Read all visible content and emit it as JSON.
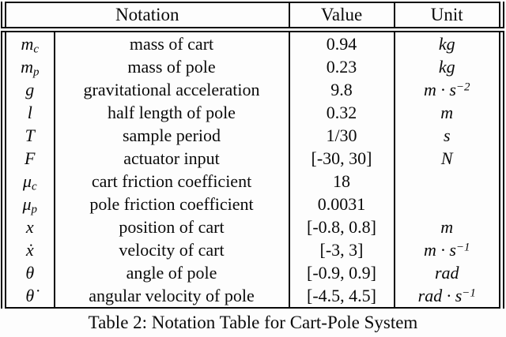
{
  "table": {
    "headers": {
      "notation": "Notation",
      "value": "Value",
      "unit": "Unit"
    },
    "rows": [
      {
        "symbol": {
          "base": "m",
          "sub": "c"
        },
        "description": "mass of cart",
        "value": "0.94",
        "unit": {
          "base": "kg",
          "sup": ""
        }
      },
      {
        "symbol": {
          "base": "m",
          "sub": "p"
        },
        "description": "mass of pole",
        "value": "0.23",
        "unit": {
          "base": "kg",
          "sup": ""
        }
      },
      {
        "symbol": {
          "base": "g",
          "sub": ""
        },
        "description": "gravitational acceleration",
        "value": "9.8",
        "unit": {
          "base": "m · s",
          "sup": "−2"
        }
      },
      {
        "symbol": {
          "base": "l",
          "sub": ""
        },
        "description": "half length of pole",
        "value": "0.32",
        "unit": {
          "base": "m",
          "sup": ""
        }
      },
      {
        "symbol": {
          "base": "T",
          "sub": ""
        },
        "description": "sample period",
        "value": "1/30",
        "unit": {
          "base": "s",
          "sup": ""
        }
      },
      {
        "symbol": {
          "base": "F",
          "sub": ""
        },
        "description": "actuator input",
        "value": "[-30, 30]",
        "unit": {
          "base": "N",
          "sup": ""
        }
      },
      {
        "symbol": {
          "base": "μ",
          "sub": "c"
        },
        "description": "cart friction coefficient",
        "value": "18",
        "unit": {
          "base": "",
          "sup": ""
        }
      },
      {
        "symbol": {
          "base": "μ",
          "sub": "p"
        },
        "description": "pole friction coefficient",
        "value": "0.0031",
        "unit": {
          "base": "",
          "sup": ""
        }
      },
      {
        "symbol": {
          "base": "x",
          "sub": ""
        },
        "description": "position of cart",
        "value": "[-0.8, 0.8]",
        "unit": {
          "base": "m",
          "sup": ""
        }
      },
      {
        "symbol": {
          "base": "ẋ",
          "sub": ""
        },
        "description": "velocity of cart",
        "value": "[-3, 3]",
        "unit": {
          "base": "m · s",
          "sup": "−1"
        }
      },
      {
        "symbol": {
          "base": "θ",
          "sub": ""
        },
        "description": "angle of pole",
        "value": "[-0.9, 0.9]",
        "unit": {
          "base": "rad",
          "sup": ""
        }
      },
      {
        "symbol": {
          "base": "θ̇",
          "sub": ""
        },
        "description": "angular velocity of pole",
        "value": "[-4.5, 4.5]",
        "unit": {
          "base": "rad · s",
          "sup": "−1"
        }
      }
    ]
  },
  "caption": "Table 2: Notation Table for Cart-Pole System",
  "colors": {
    "text": "#0a0a0a",
    "background": "#fdfdfd",
    "border": "#0a0a0a"
  }
}
